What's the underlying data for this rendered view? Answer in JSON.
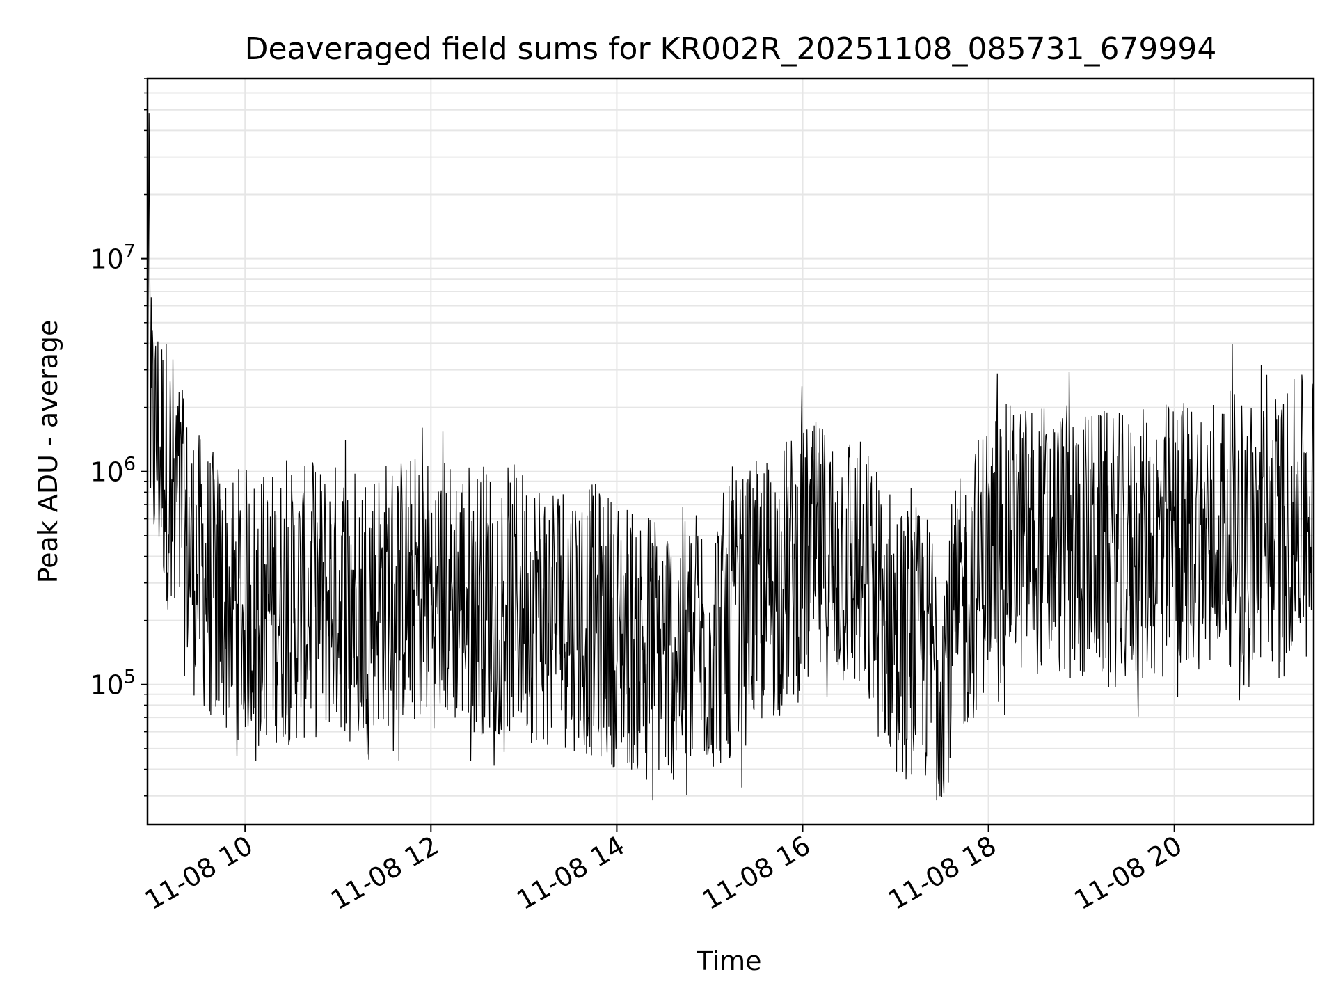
{
  "chart_data": {
    "type": "line",
    "title": "Deaveraged field sums for KR002R_20251108_085731_679994",
    "xlabel": "Time",
    "ylabel": "Peak ADU - average",
    "yscale": "log",
    "grid": true,
    "legend": "none",
    "line_color": "#000000",
    "x_range": [
      "2025-11-08 08:57",
      "2025-11-08 21:30"
    ],
    "ylim": [
      22000,
      70000000
    ],
    "x_ticks": [
      {
        "value": "2025-11-08 10:00",
        "label": "11-08 10"
      },
      {
        "value": "2025-11-08 12:00",
        "label": "11-08 12"
      },
      {
        "value": "2025-11-08 14:00",
        "label": "11-08 14"
      },
      {
        "value": "2025-11-08 16:00",
        "label": "11-08 16"
      },
      {
        "value": "2025-11-08 18:00",
        "label": "11-08 18"
      },
      {
        "value": "2025-11-08 20:00",
        "label": "11-08 20"
      }
    ],
    "y_ticks": [
      {
        "value": 100000,
        "base": "10",
        "exp": "5"
      },
      {
        "value": 1000000,
        "base": "10",
        "exp": "6"
      },
      {
        "value": 10000000,
        "base": "10",
        "exp": "7"
      }
    ],
    "series": [
      {
        "values_note_is_absent": null,
        "points": [
          [
            "2025-11-08 08:57",
            1200000
          ],
          [
            "2025-11-08 08:58",
            48000000
          ],
          [
            "2025-11-08 08:59",
            1500000
          ],
          [
            "2025-11-08 09:05",
            1300000
          ],
          [
            "2025-11-08 09:10",
            1000000
          ],
          [
            "2025-11-08 09:15",
            800000
          ],
          [
            "2025-11-08 09:20",
            500000
          ],
          [
            "2025-11-08 09:30",
            350000
          ],
          [
            "2025-11-08 09:45",
            250000
          ],
          [
            "2025-11-08 10:00",
            240000
          ],
          [
            "2025-11-08 10:30",
            230000
          ],
          [
            "2025-11-08 11:00",
            260000
          ],
          [
            "2025-11-08 11:30",
            270000
          ],
          [
            "2025-11-08 12:00",
            280000
          ],
          [
            "2025-11-08 12:30",
            260000
          ],
          [
            "2025-11-08 13:00",
            240000
          ],
          [
            "2025-11-08 13:30",
            220000
          ],
          [
            "2025-11-08 14:00",
            180000
          ],
          [
            "2025-11-08 14:30",
            150000
          ],
          [
            "2025-11-08 15:00",
            160000
          ],
          [
            "2025-11-08 15:30",
            250000
          ],
          [
            "2025-11-08 16:00",
            380000
          ],
          [
            "2025-11-08 16:30",
            400000
          ],
          [
            "2025-11-08 17:00",
            180000
          ],
          [
            "2025-11-08 17:30",
            130000
          ],
          [
            "2025-11-08 18:00",
            450000
          ],
          [
            "2025-11-08 18:30",
            500000
          ],
          [
            "2025-11-08 19:00",
            450000
          ],
          [
            "2025-11-08 19:30",
            420000
          ],
          [
            "2025-11-08 20:00",
            500000
          ],
          [
            "2025-11-08 20:30",
            550000
          ],
          [
            "2025-11-08 21:00",
            500000
          ],
          [
            "2025-11-08 21:30",
            700000
          ]
        ]
      }
    ]
  }
}
